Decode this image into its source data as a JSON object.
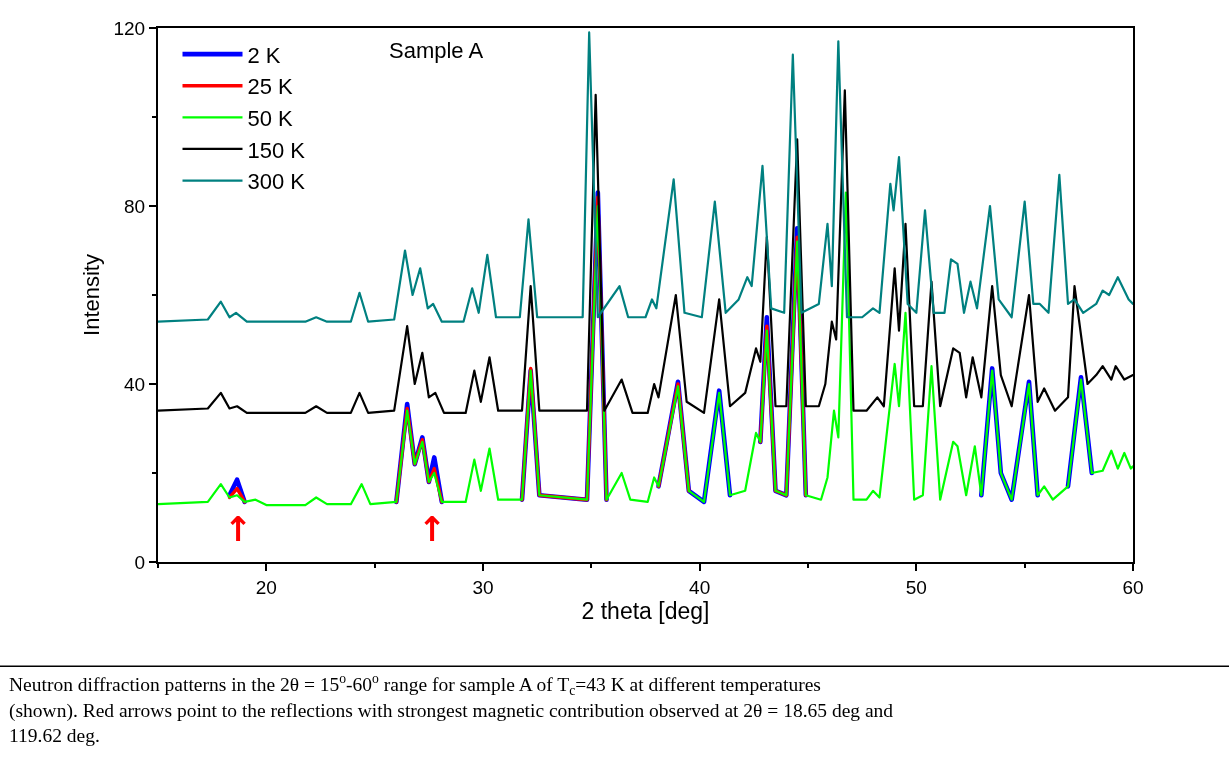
{
  "chart_data": {
    "type": "line",
    "xlabel": "2 theta [deg]",
    "ylabel": "Intensity",
    "xlim": [
      15,
      60
    ],
    "xticks": [
      20,
      30,
      40,
      50,
      60
    ],
    "ylim": [
      0,
      120
    ],
    "yticks": [
      0,
      40,
      80,
      120
    ],
    "legend": "top left",
    "marker": "none",
    "line_style": "solid",
    "annotations": [
      "Sample A",
      "↑",
      "↑",
      "Neutron diffraction patterns in the 2θ = 15$^{o}$-60$^{o}$ range for sample A of T$_{c}$=43 K at different temperatures (shown). Red arrows point to the reflections with strongest magnetic contribution observed at 2θ = 18.65 deg and 119.62 deg."
    ],
    "series": [
      {
        "name": "2 K",
        "color": "#0000ff",
        "x": [
          18.3,
          18.65,
          19.0,
          null,
          26.0,
          26.5,
          26.85,
          27.2,
          27.5,
          27.75,
          28.1,
          null,
          31.8,
          32.2,
          32.6,
          34.8,
          35.3,
          35.7,
          null,
          38.1,
          39.0,
          39.5,
          40.2,
          40.9,
          41.4,
          null,
          42.8,
          43.1,
          43.5,
          44.0,
          44.5,
          44.9,
          null,
          53.0,
          53.5,
          53.9,
          54.4,
          55.2,
          55.6,
          null,
          57.0,
          57.6,
          58.1
        ],
        "values": [
          15,
          18.5,
          13.5,
          null,
          13.5,
          35.5,
          22,
          28,
          18,
          23.5,
          13.5,
          null,
          14,
          43,
          15,
          14,
          83,
          14,
          null,
          17,
          40.5,
          16,
          13.5,
          38.5,
          15,
          null,
          27,
          55,
          16,
          15,
          75,
          15,
          null,
          15,
          43.5,
          20,
          14,
          40.5,
          15,
          null,
          17,
          41.5,
          20
        ]
      },
      {
        "name": "25 K",
        "color": "#ff0000",
        "x": [
          18.3,
          18.65,
          19.0,
          null,
          26.0,
          26.5,
          26.85,
          27.2,
          27.5,
          27.75,
          28.1,
          null,
          31.8,
          32.2,
          32.6,
          34.8,
          35.3,
          35.7,
          null,
          38.1,
          39.0,
          39.5,
          null,
          42.8,
          43.1,
          43.5,
          44.0,
          44.5,
          44.9
        ],
        "values": [
          14.5,
          16.5,
          13.5,
          null,
          13.5,
          34.5,
          22,
          27.5,
          18,
          21,
          13.5,
          null,
          14,
          43.5,
          15,
          14,
          82,
          14,
          null,
          17,
          40,
          16,
          null,
          27,
          53,
          16,
          15,
          73,
          15
        ]
      },
      {
        "name": "50 K",
        "color": "#00ff00",
        "x": [
          15,
          17.3,
          17.9,
          18.3,
          18.65,
          19.0,
          19.5,
          20.0,
          21.8,
          22.3,
          22.8,
          23.9,
          24.4,
          24.8,
          26.0,
          26.5,
          26.85,
          27.2,
          27.5,
          27.75,
          28.1,
          29.2,
          29.6,
          29.9,
          30.3,
          30.7,
          31.8,
          32.2,
          32.6,
          34.8,
          35.3,
          35.7,
          36.4,
          36.8,
          37.6,
          37.9,
          38.1,
          39.0,
          39.5,
          40.2,
          40.9,
          41.4,
          42.1,
          42.6,
          42.8,
          43.1,
          43.5,
          44.0,
          44.5,
          44.9,
          45.6,
          45.9,
          46.2,
          46.4,
          46.75,
          47.1,
          47.7,
          48.0,
          48.3,
          49.0,
          49.2,
          49.5,
          49.9,
          50.3,
          50.7,
          51.1,
          51.7,
          51.9,
          52.3,
          52.7,
          53.0,
          53.5,
          53.9,
          54.4,
          55.2,
          55.6,
          55.9,
          56.3,
          57.0,
          57.6,
          58.1,
          58.6,
          59.0,
          59.3,
          59.6,
          59.9,
          60
        ],
        "values": [
          13,
          13.5,
          17.5,
          14.5,
          15,
          13.5,
          14,
          12.8,
          12.8,
          14.5,
          13,
          13,
          17.5,
          13,
          13.5,
          34,
          22,
          27,
          18,
          20,
          13.5,
          13.5,
          23,
          16,
          25.5,
          14,
          14,
          43,
          15,
          14,
          80,
          14,
          20,
          14,
          13.5,
          19,
          17,
          39.5,
          16,
          13.5,
          38,
          15,
          16,
          29,
          27,
          52,
          16,
          15,
          72,
          15,
          14,
          19,
          34,
          28,
          83,
          14,
          14,
          16,
          14.5,
          44.5,
          35,
          56,
          14,
          15,
          44,
          14,
          27,
          26,
          15,
          26,
          15,
          43,
          20,
          14,
          40,
          15,
          17,
          14,
          17,
          41,
          20,
          20.5,
          25,
          21,
          24.5,
          21,
          21.5
        ]
      },
      {
        "name": "150 K",
        "color": "#000000",
        "x": [
          15,
          17.3,
          17.9,
          18.3,
          18.65,
          19.1,
          21.8,
          22.3,
          22.8,
          23.9,
          24.3,
          24.7,
          25.9,
          26.5,
          26.85,
          27.2,
          27.5,
          27.8,
          28.2,
          29.2,
          29.6,
          29.9,
          30.3,
          30.7,
          31.8,
          32.2,
          32.6,
          34.8,
          35.2,
          35.6,
          36.4,
          36.9,
          37.6,
          37.9,
          38.1,
          38.9,
          39.4,
          40.2,
          40.9,
          41.4,
          42.1,
          42.6,
          42.8,
          43.1,
          43.5,
          44.0,
          44.5,
          44.9,
          45.5,
          45.8,
          46.1,
          46.3,
          46.7,
          47.1,
          47.7,
          48.2,
          48.5,
          49.0,
          49.2,
          49.5,
          49.9,
          50.3,
          50.7,
          51.1,
          51.7,
          52.0,
          52.3,
          52.6,
          53.0,
          53.5,
          53.9,
          54.4,
          55.2,
          55.6,
          55.9,
          56.4,
          57.0,
          57.3,
          57.9,
          58.3,
          58.6,
          59.0,
          59.2,
          59.6,
          60
        ],
        "values": [
          34,
          34.5,
          38,
          34.5,
          35,
          33.5,
          33.5,
          35,
          33.5,
          33.5,
          38,
          33.5,
          34,
          53,
          40,
          47,
          37,
          38,
          33.5,
          33.5,
          43,
          36,
          46,
          34,
          34,
          62,
          34,
          34,
          105,
          34,
          41,
          33.5,
          33.5,
          40,
          37,
          60,
          36,
          33.5,
          59,
          35,
          38,
          48,
          45,
          73,
          35,
          35,
          95,
          35,
          35,
          40,
          54,
          50,
          106,
          34,
          34,
          37,
          35,
          66,
          52,
          76,
          35,
          35,
          63,
          35,
          48,
          47,
          37,
          46,
          37,
          62,
          42,
          35,
          60,
          36,
          39,
          34,
          37,
          62,
          40,
          42,
          44,
          41,
          44,
          41,
          42
        ]
      },
      {
        "name": "300 K",
        "color": "#008080",
        "x": [
          15,
          17.3,
          17.9,
          18.3,
          18.6,
          19.1,
          21.8,
          22.3,
          22.8,
          23.9,
          24.3,
          24.7,
          25.9,
          26.4,
          26.75,
          27.1,
          27.45,
          27.7,
          28.1,
          29.1,
          29.5,
          29.8,
          30.2,
          30.6,
          31.7,
          32.1,
          32.5,
          34.6,
          34.9,
          35.3,
          36.3,
          36.7,
          37.5,
          37.8,
          38.0,
          38.8,
          39.3,
          40.1,
          40.7,
          41.2,
          41.8,
          42.2,
          42.4,
          42.9,
          43.3,
          43.9,
          44.3,
          44.7,
          45.5,
          45.9,
          46.1,
          46.4,
          46.8,
          47.5,
          48.0,
          48.3,
          48.8,
          48.95,
          49.2,
          49.6,
          50.0,
          50.4,
          50.8,
          51.3,
          51.6,
          51.9,
          52.2,
          52.5,
          52.8,
          53.4,
          53.8,
          54.4,
          55.0,
          55.4,
          55.7,
          56.1,
          56.6,
          57.0,
          57.3,
          57.7,
          58.3,
          58.6,
          58.9,
          59.3,
          59.8,
          60
        ],
        "values": [
          54,
          54.5,
          58.5,
          55,
          56,
          54,
          54,
          55,
          54,
          54,
          60.5,
          54,
          54.5,
          70,
          60,
          66,
          57,
          58,
          54,
          54,
          61.5,
          56,
          69,
          55,
          55,
          77,
          55,
          55,
          119,
          55,
          62,
          55,
          55,
          59,
          57,
          86,
          56,
          55,
          81,
          56,
          59,
          64,
          62,
          89,
          57,
          56,
          114,
          56,
          58,
          76,
          62,
          117,
          55,
          55,
          57,
          56,
          85,
          79,
          91,
          58,
          56,
          79,
          56,
          56,
          68,
          67,
          56,
          63,
          57,
          80,
          59,
          55,
          81,
          58,
          58,
          56,
          87,
          58,
          59,
          56,
          58,
          61,
          60,
          64,
          59,
          58
        ]
      }
    ]
  }
}
